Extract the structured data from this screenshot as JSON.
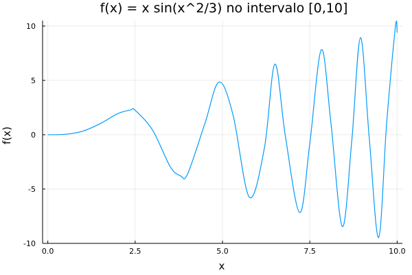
{
  "chart_data": {
    "type": "line",
    "title": "f(x) = x sin(x^2/3) no intervalo [0,10]",
    "xlabel": "x",
    "ylabel": "f(x)",
    "xlim": [
      -0.15,
      10.15
    ],
    "ylim": [
      -10,
      10.5
    ],
    "x_ticks": [
      0,
      2.5,
      5,
      7.5,
      10
    ],
    "x_tick_labels": [
      "0.0",
      "2.5",
      "5.0",
      "7.5",
      "10.0"
    ],
    "y_ticks": [
      -10,
      -5,
      0,
      5,
      10
    ],
    "y_tick_labels": [
      "-10",
      "-5",
      "0",
      "5",
      "10"
    ],
    "grid": true,
    "legend": "none",
    "series": [
      {
        "color": "#009AFA",
        "x": [
          0.0,
          0.5,
          1.0,
          1.5,
          2.0,
          2.37,
          2.5,
          3.0,
          3.5,
          3.8,
          4.0,
          4.5,
          4.9,
          5.3,
          5.77,
          6.2,
          6.5,
          6.8,
          7.21,
          7.5,
          7.83,
          8.1,
          8.43,
          8.7,
          8.95,
          9.2,
          9.47,
          9.7,
          9.95,
          10.0
        ],
        "y": [
          0.0,
          0.042,
          0.327,
          1.022,
          1.937,
          2.279,
          2.249,
          0.423,
          -2.919,
          -3.785,
          -3.627,
          1.069,
          4.848,
          1.848,
          -5.751,
          -1.224,
          6.493,
          -0.131,
          -7.17,
          -0.806,
          7.821,
          1.216,
          -8.448,
          -0.609,
          8.937,
          -0.232,
          -9.462,
          1.089,
          9.935,
          9.4
        ]
      }
    ]
  }
}
